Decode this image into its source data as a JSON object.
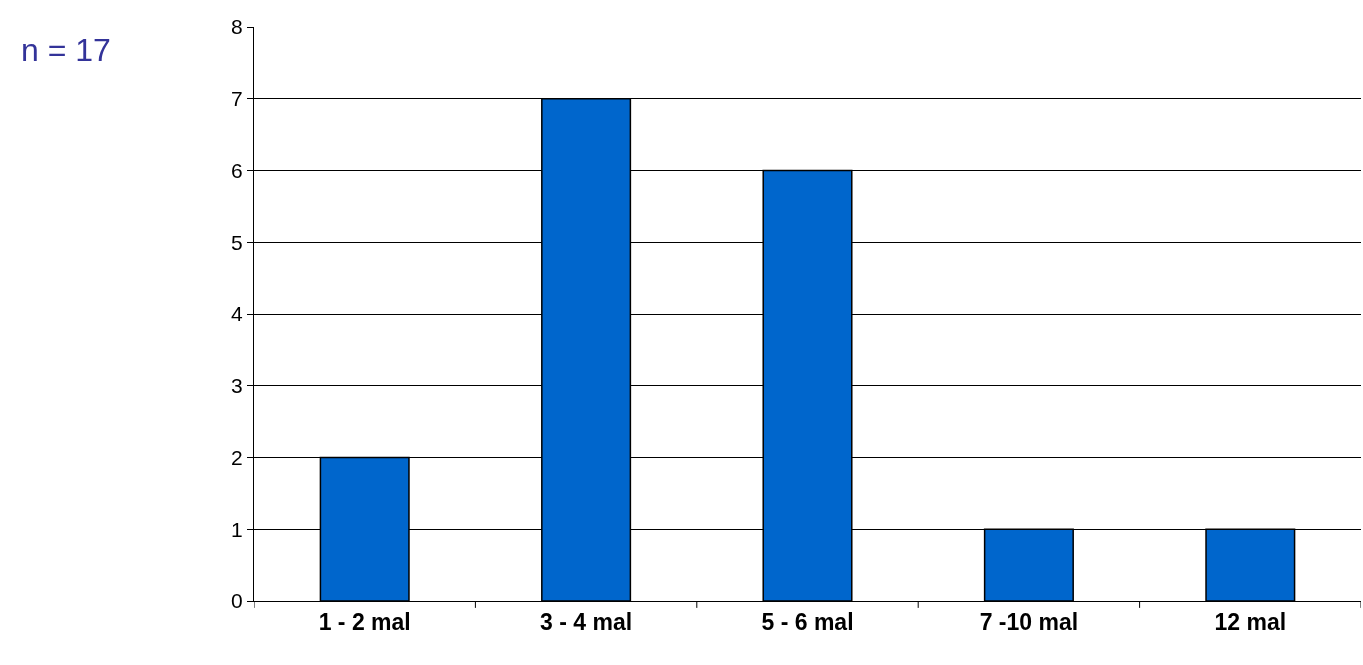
{
  "chart_data": {
    "type": "bar",
    "annotations": [
      "n = 17"
    ],
    "categories": [
      "1 - 2 mal",
      "3 - 4 mal",
      "5 - 6 mal",
      "7 -10 mal",
      "12 mal"
    ],
    "values": [
      2,
      7,
      6,
      1,
      1
    ],
    "color": "#0066cc",
    "ylim": [
      0,
      8
    ],
    "yticks": [
      0,
      1,
      2,
      3,
      4,
      5,
      6,
      7,
      8
    ],
    "grid": "y"
  }
}
